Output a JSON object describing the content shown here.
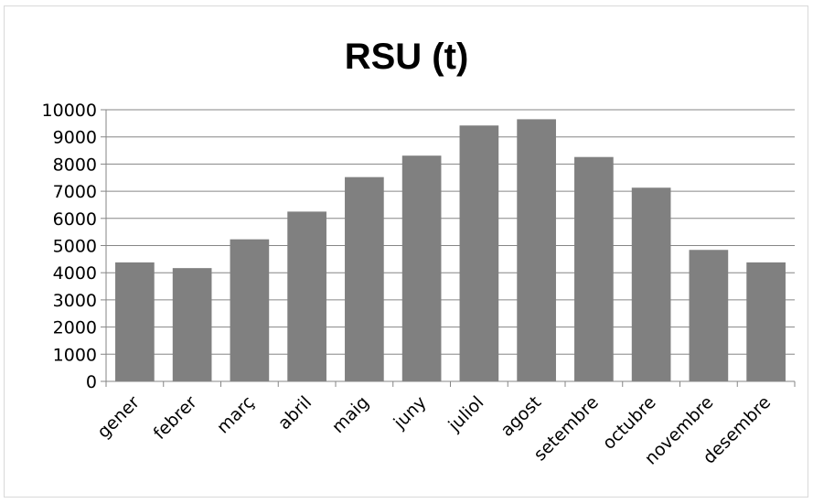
{
  "chart_data": {
    "type": "bar",
    "title": "RSU (t)",
    "xlabel": "",
    "ylabel": "",
    "categories": [
      "gener",
      "febrer",
      "març",
      "abril",
      "maig",
      "juny",
      "juliol",
      "agost",
      "setembre",
      "octubre",
      "novembre",
      "desembre"
    ],
    "values": [
      4380,
      4170,
      5230,
      6250,
      7520,
      8310,
      9420,
      9650,
      8260,
      7130,
      4840,
      4380
    ],
    "ylim": [
      0,
      10000
    ],
    "yticks": [
      "0",
      "1000",
      "2000",
      "3000",
      "4000",
      "5000",
      "6000",
      "7000",
      "8000",
      "9000",
      "10000"
    ],
    "ytick_step": 1000,
    "grid": true,
    "legend": "none",
    "bar_color": "#808080",
    "grid_color": "#868686"
  }
}
